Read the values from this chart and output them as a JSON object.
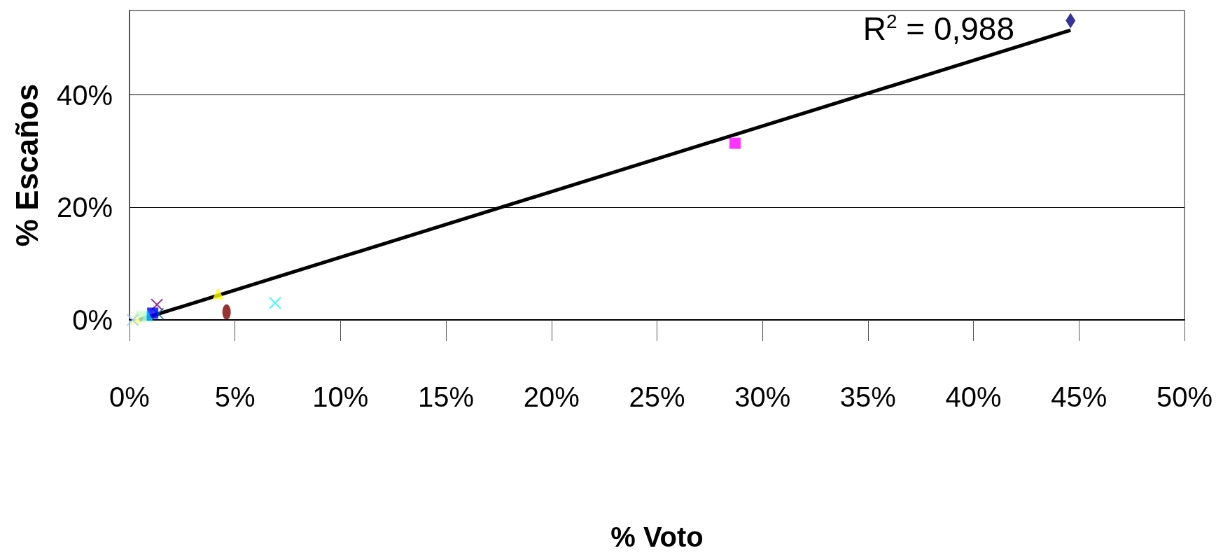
{
  "chart_data": {
    "type": "scatter",
    "xlabel": "% Voto",
    "ylabel": "% Escaños",
    "xlim": [
      0,
      50
    ],
    "xticks": [
      {
        "value": 0,
        "label": "0%"
      },
      {
        "value": 5,
        "label": "5%"
      },
      {
        "value": 10,
        "label": "10%"
      },
      {
        "value": 15,
        "label": "15%"
      },
      {
        "value": 20,
        "label": "20%"
      },
      {
        "value": 25,
        "label": "25%"
      },
      {
        "value": 30,
        "label": "30%"
      },
      {
        "value": 35,
        "label": "35%"
      },
      {
        "value": 40,
        "label": "40%"
      },
      {
        "value": 45,
        "label": "45%"
      },
      {
        "value": 50,
        "label": "50%"
      }
    ],
    "ylim": [
      0,
      55
    ],
    "yticks": [
      {
        "value": 0,
        "label": "0%"
      },
      {
        "value": 20,
        "label": "20%"
      },
      {
        "value": 40,
        "label": "40%"
      }
    ],
    "grid": "y",
    "annotations": [
      "R$^{2}$ = 0,988"
    ],
    "series": [
      {
        "color": "#000080",
        "marker": "diamond",
        "x": [
          44.6
        ],
        "values": [
          53.2
        ]
      },
      {
        "color": "#ff00ff",
        "marker": "square",
        "x": [
          28.7
        ],
        "values": [
          31.4
        ]
      },
      {
        "color": "#ffff00",
        "marker": "triangle",
        "x": [
          4.2
        ],
        "values": [
          4.7
        ]
      },
      {
        "color": "#800000",
        "marker": "circle",
        "x": [
          4.6
        ],
        "values": [
          1.4
        ]
      },
      {
        "color": "#00ffff",
        "marker": "cross",
        "x": [
          6.9
        ],
        "values": [
          3.0
        ]
      },
      {
        "color": "#800080",
        "marker": "cross",
        "x": [
          1.3
        ],
        "values": [
          2.7
        ]
      },
      {
        "color": "#008080",
        "marker": "cross",
        "x": [
          1.35
        ],
        "values": [
          1.1
        ]
      },
      {
        "color": "#0000ff",
        "marker": "square",
        "x": [
          1.1
        ],
        "values": [
          1.2
        ]
      },
      {
        "color": "#00ccff",
        "marker": "triangle",
        "x": [
          0.85
        ],
        "values": [
          0.8
        ]
      },
      {
        "color": "#ccffcc",
        "marker": "square",
        "x": [
          0.55
        ],
        "values": [
          0.6
        ]
      },
      {
        "color": "#ffff99",
        "marker": "triangle",
        "x": [
          0.3
        ],
        "values": [
          0.2
        ]
      },
      {
        "color": "#99ccff",
        "marker": "cross",
        "x": [
          0.15
        ],
        "values": [
          0.0
        ]
      },
      {
        "type": "line",
        "color": "#000000",
        "marker": "none",
        "x": [
          0.45,
          44.6
        ],
        "values": [
          0,
          51.5
        ]
      }
    ]
  }
}
